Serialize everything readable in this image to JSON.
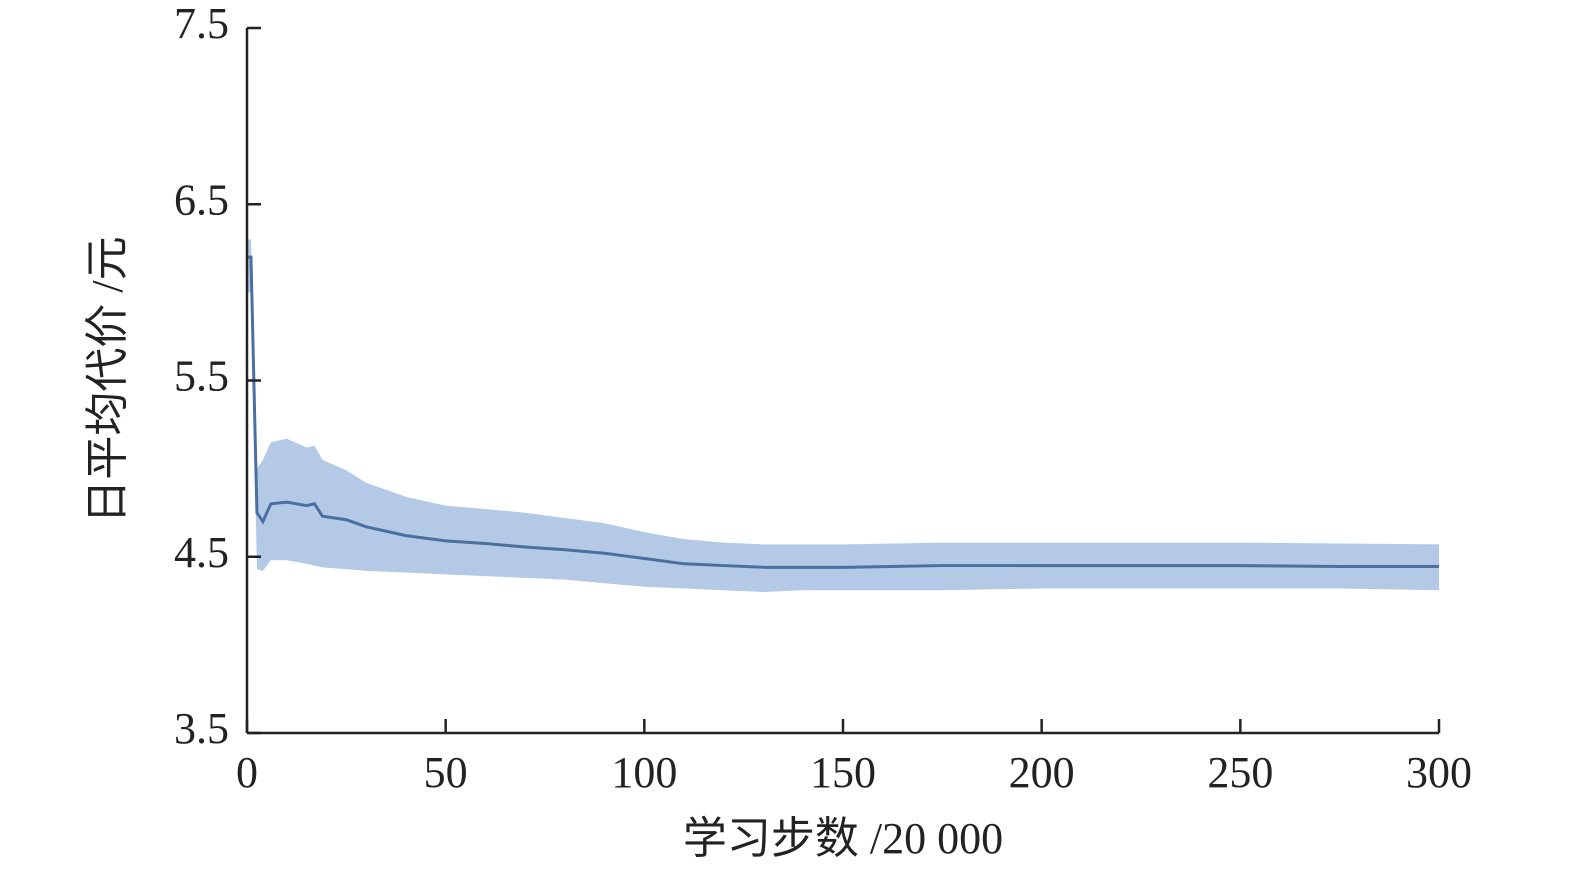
{
  "chart_data": {
    "type": "line",
    "xlabel": "学习步数 /20 000",
    "ylabel": "日平均代价 /元",
    "x": [
      0,
      1,
      2.5,
      4,
      6,
      10,
      15,
      17,
      19,
      25,
      30,
      40,
      50,
      60,
      70,
      80,
      90,
      100,
      110,
      120,
      130,
      140,
      150,
      175,
      200,
      225,
      250,
      275,
      300
    ],
    "values": [
      6.2,
      6.2,
      4.75,
      4.7,
      4.8,
      4.81,
      4.79,
      4.8,
      4.73,
      4.71,
      4.67,
      4.62,
      4.59,
      4.575,
      4.555,
      4.54,
      4.52,
      4.49,
      4.46,
      4.45,
      4.44,
      4.44,
      4.44,
      4.45,
      4.45,
      4.45,
      4.45,
      4.445,
      4.445
    ],
    "lower": [
      6.0,
      6.0,
      4.43,
      4.42,
      4.48,
      4.48,
      4.46,
      4.45,
      4.44,
      4.43,
      4.42,
      4.41,
      4.4,
      4.39,
      4.38,
      4.37,
      4.35,
      4.33,
      4.32,
      4.31,
      4.3,
      4.31,
      4.31,
      4.31,
      4.32,
      4.32,
      4.32,
      4.32,
      4.31
    ],
    "upper": [
      6.3,
      6.3,
      5.0,
      5.05,
      5.15,
      5.17,
      5.12,
      5.13,
      5.05,
      4.99,
      4.92,
      4.84,
      4.79,
      4.77,
      4.75,
      4.72,
      4.69,
      4.64,
      4.6,
      4.58,
      4.57,
      4.57,
      4.57,
      4.58,
      4.58,
      4.58,
      4.58,
      4.575,
      4.57
    ],
    "color": "#4a6fa0",
    "band_color": "#b3c9e6",
    "xlim": [
      0,
      300
    ],
    "xticks": [
      0,
      50,
      100,
      150,
      200,
      250,
      300
    ],
    "ylim": [
      3.5,
      7.5
    ],
    "yticks": [
      3.5,
      4.5,
      5.5,
      6.5,
      7.5
    ]
  }
}
